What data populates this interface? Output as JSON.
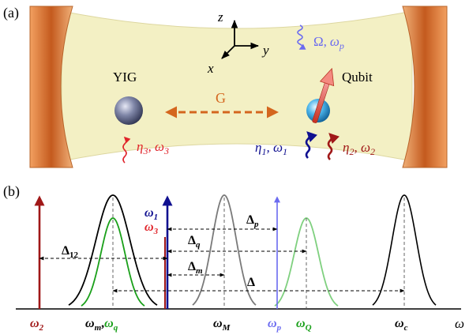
{
  "panel_a": {
    "label": "(a)",
    "axes": {
      "z": "z",
      "y": "y",
      "x": "x"
    },
    "yig_label": "YIG",
    "qubit_label": "Qubit",
    "coupling_label": "G",
    "drive_p": {
      "amp": "Ω,",
      "freq_base": "ω",
      "freq_sub": "p"
    },
    "drive_1": {
      "amp_base": "η",
      "amp_sub": "1",
      "freq_base": ", ω",
      "freq_sub": "1"
    },
    "drive_2": {
      "amp_base": "η",
      "amp_sub": "2",
      "freq_base": ", ω",
      "freq_sub": "2"
    },
    "drive_3": {
      "amp_base": "η",
      "amp_sub": "3",
      "freq_base": ", ω",
      "freq_sub": "3"
    }
  },
  "panel_b": {
    "label": "(b)",
    "axis_label": "ω",
    "omega2": {
      "base": "ω",
      "sub": "2"
    },
    "omega_m": {
      "base": "ω",
      "sub": "m"
    },
    "comma": ",",
    "omega_q": {
      "base": "ω",
      "sub": "q"
    },
    "omega1": {
      "base": "ω",
      "sub": "1"
    },
    "omega3": {
      "base": "ω",
      "sub": "3"
    },
    "omega_M": {
      "base": "ω",
      "sub": "M"
    },
    "omega_p": {
      "base": "ω",
      "sub": "p"
    },
    "omega_Q": {
      "base": "ω",
      "sub": "Q"
    },
    "omega_c": {
      "base": "ω",
      "sub": "c"
    },
    "delta12": {
      "base": "Δ",
      "sub": "12"
    },
    "delta_p": {
      "base": "Δ",
      "sub": "p"
    },
    "delta_q": {
      "base": "Δ",
      "sub": "q"
    },
    "delta_m": {
      "base": "Δ",
      "sub": "m"
    },
    "delta": "Δ"
  },
  "colors": {
    "cavity_fill": "#f3f0c4",
    "mirror": "#d9732f",
    "red_dark": "#a01818",
    "blue_dark": "#101090",
    "blue_light": "#6b6bf0",
    "red_light": "#e0242a",
    "green": "#1aa01a",
    "green_light": "#7fd07f",
    "gray": "#7a7a7a",
    "purple": "#5a1470",
    "coupling": "#d4661e"
  }
}
